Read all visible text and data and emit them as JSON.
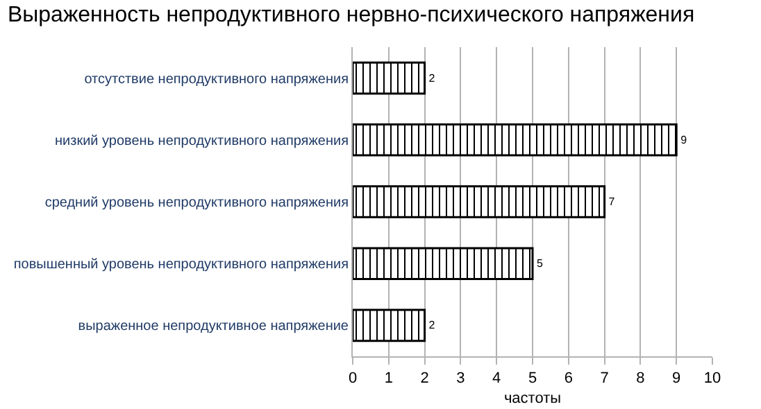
{
  "chart_data": {
    "type": "bar",
    "orientation": "horizontal",
    "title": "Выраженность непродуктивного нервно-психического напряжения",
    "xlabel": "частоты",
    "categories": [
      "отсутствие непродуктивного напряжения",
      "низкий уровень непродуктивного напряжения",
      "средний уровень непродуктивного напряжения",
      "повышенный уровень непродуктивного напряжения",
      "выраженное непродуктивное напряжение"
    ],
    "values": [
      2,
      9,
      7,
      5,
      2
    ],
    "color": "#000000",
    "xlim": [
      0,
      10
    ],
    "xticks": [
      0,
      1,
      2,
      3,
      4,
      5,
      6,
      7,
      8,
      9,
      10
    ],
    "grid": "x",
    "data_labels": true
  }
}
